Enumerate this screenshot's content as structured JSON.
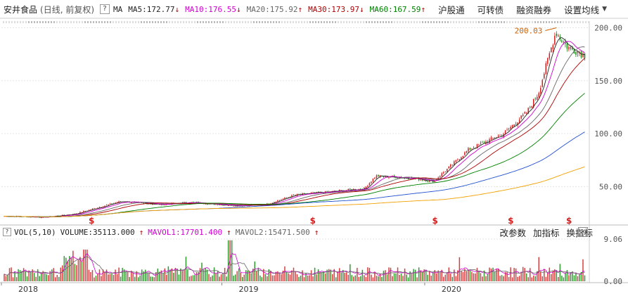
{
  "header": {
    "title": "安井食品",
    "period": "(日线, 前复权)",
    "help_label": "?",
    "ma_label": "MA",
    "ma_items": [
      {
        "text": "MA5:172.77",
        "color": "#222222",
        "arrow": "↓"
      },
      {
        "text": "MA10:176.55",
        "color": "#d000d0",
        "arrow": "↓"
      },
      {
        "text": "MA20:175.92",
        "color": "#666666",
        "arrow": "↑"
      },
      {
        "text": "MA30:173.97",
        "color": "#b00000",
        "arrow": "↓"
      },
      {
        "text": "MA60:167.59",
        "color": "#008000",
        "arrow": "↑"
      }
    ],
    "menus": [
      "沪股通",
      "可转债",
      "融资融券",
      "设置均线"
    ],
    "dropdown_icon": "chevron-down-icon"
  },
  "volume_header": {
    "vol_label": "VOL(5,10)",
    "volume": "VOLUME:35113.000",
    "mavol1": "MAVOL1:17701.400",
    "mavol2": "MAVOL2:15471.500",
    "arrow1": "↑",
    "arrow2": "↑",
    "arrow3": "↑",
    "menus": [
      "改参数",
      "加指标",
      "换指标"
    ],
    "close_label": "×"
  },
  "annotations": {
    "peak_label": "200.03",
    "dividend_marker": "$"
  },
  "colors": {
    "up": "#d02020",
    "down": "#118811",
    "ma5": "#222222",
    "ma10": "#d000d0",
    "ma20": "#666666",
    "ma30": "#b00000",
    "ma60": "#008000",
    "ma120": "#2050d0",
    "ma250": "#f0a000",
    "grid": "#e4e4e4",
    "axis_text": "#555555",
    "peak_label": "#d06000"
  },
  "chart_data": {
    "type": "candlestick",
    "title": "",
    "price_axis": {
      "ticks": [
        200.0,
        150.0,
        100.0,
        50.0
      ],
      "tick_labels": [
        "200.00",
        "150.00",
        "100.00",
        "50.00"
      ],
      "ylim": [
        15,
        205
      ]
    },
    "volume_axis": {
      "ticks": [
        9.06,
        0.0
      ],
      "tick_labels": [
        "9.06",
        "0.00"
      ],
      "ylim": [
        0,
        9.06
      ]
    },
    "x_labels": [
      "2018",
      "2019",
      "2020"
    ],
    "price_trend": {
      "x_fraction": [
        0.0,
        0.07,
        0.12,
        0.2,
        0.27,
        0.32,
        0.4,
        0.45,
        0.5,
        0.56,
        0.62,
        0.64,
        0.7,
        0.74,
        0.8,
        0.86,
        0.9,
        0.92,
        0.95,
        0.97,
        1.0
      ],
      "close": [
        22,
        21,
        24,
        36,
        33,
        35,
        32,
        33,
        42,
        45,
        48,
        60,
        58,
        55,
        85,
        100,
        120,
        138,
        196,
        182,
        174
      ]
    },
    "ma_current": {
      "MA5": 172.77,
      "MA10": 176.55,
      "MA20": 175.92,
      "MA30": 173.97,
      "MA60": 167.59
    },
    "annotation_peak": 200.03,
    "dividend_marker_fractions": [
      0.15,
      0.53,
      0.74,
      0.87,
      0.97
    ]
  }
}
